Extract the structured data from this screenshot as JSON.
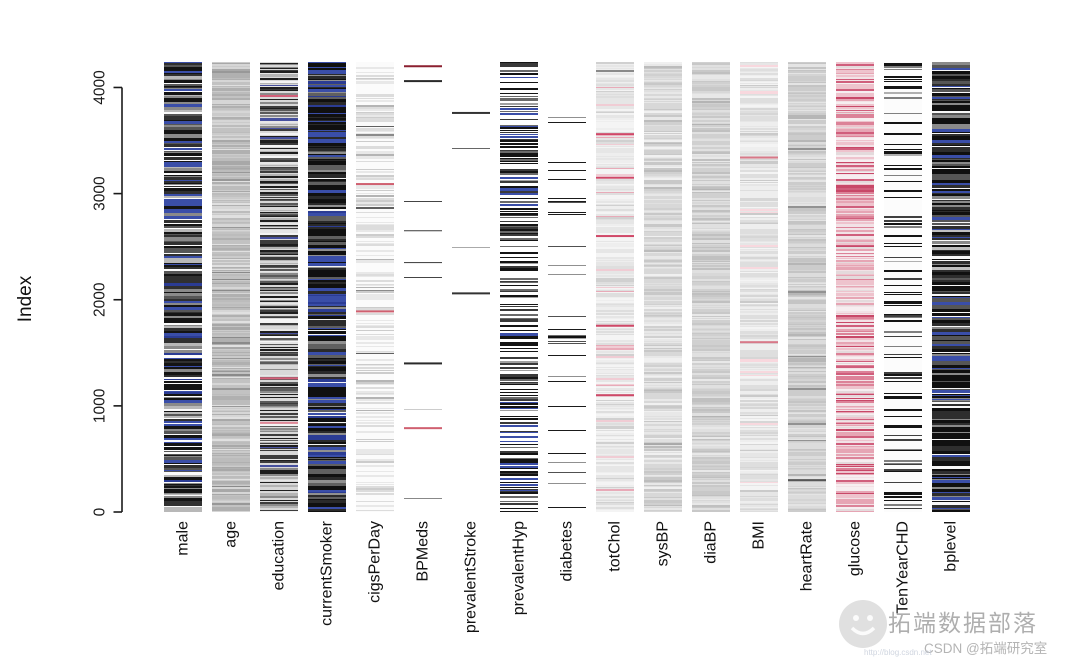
{
  "chart_data": {
    "type": "heatmap",
    "title": "",
    "ylabel": "Index",
    "y_ticks": [
      "0",
      "1000",
      "2000",
      "3000",
      "4000"
    ],
    "y_tick_values": [
      0,
      1000,
      2000,
      3000,
      4000
    ],
    "y_max": 4240,
    "n_rows": 4240,
    "seed": 1337,
    "accent_colors": {
      "blue": "#3a4ea8",
      "red": "#d04868",
      "black": "#141414"
    },
    "x_categories": [
      "male",
      "age",
      "education",
      "currentSmoker",
      "cigsPerDay",
      "BPMeds",
      "prevalentStroke",
      "prevalentHyp",
      "diabetes",
      "totChol",
      "sysBP",
      "diaBP",
      "BMI",
      "heartRate",
      "glucose",
      "TenYearCHD",
      "bplevel"
    ],
    "columns": [
      {
        "name": "male",
        "bg": "#fbfbfb",
        "density": 0.8,
        "run": 3,
        "palette": [
          [
            "#141414",
            3
          ],
          [
            "#303030",
            1.5
          ],
          [
            "#565656",
            1.5
          ],
          [
            "#8a8a8a",
            1.5
          ],
          [
            "#b8b8b8",
            1
          ],
          [
            "#3a4ea8",
            1.6
          ],
          [
            "#2b3c94",
            0.6
          ]
        ],
        "marks": []
      },
      {
        "name": "age",
        "bg": "#cbcbcb",
        "density": 0.85,
        "run": 2,
        "palette": [
          [
            "#c2c2c2",
            2
          ],
          [
            "#bcbcbc",
            2
          ],
          [
            "#b0b0b0",
            1.5
          ],
          [
            "#a8a8a8",
            1
          ],
          [
            "#d6d6d6",
            1.5
          ],
          [
            "#e0e0e0",
            0.7
          ],
          [
            "#989898",
            0.4
          ],
          [
            "#8a8a8a",
            0.2
          ]
        ],
        "marks": []
      },
      {
        "name": "education",
        "bg": "#d8d8d8",
        "density": 0.65,
        "run": 2,
        "palette": [
          [
            "#1e1e1e",
            1.8
          ],
          [
            "#3c3c3c",
            1.5
          ],
          [
            "#5a5a5a",
            1.2
          ],
          [
            "#8a8a8a",
            1.2
          ],
          [
            "#b4b4b4",
            1
          ],
          [
            "#e6e6e6",
            0.8
          ],
          [
            "#f4f4f4",
            0.5
          ],
          [
            "#46509e",
            0.25
          ]
        ],
        "marks": [
          [
            3920,
            "#d5607a",
            2
          ],
          [
            1260,
            "#d5607a",
            2
          ],
          [
            840,
            "#e08898",
            2
          ]
        ]
      },
      {
        "name": "currentSmoker",
        "bg": "#f4f4f4",
        "density": 0.92,
        "run": 3,
        "palette": [
          [
            "#101010",
            4
          ],
          [
            "#2a2a2a",
            2
          ],
          [
            "#3a4ea8",
            2
          ],
          [
            "#2b3c94",
            1
          ],
          [
            "#606060",
            1.2
          ],
          [
            "#909090",
            0.6
          ]
        ],
        "marks": []
      },
      {
        "name": "cigsPerDay",
        "bg": "#fbfbfb",
        "density": 0.4,
        "run": 2,
        "palette": [
          [
            "#e8e8e8",
            2.5
          ],
          [
            "#dcdcdc",
            2
          ],
          [
            "#cccccc",
            1.2
          ],
          [
            "#b4b4b4",
            0.5
          ],
          [
            "#8a8a8a",
            0.2
          ],
          [
            "#606060",
            0.08
          ]
        ],
        "marks": [
          [
            3090,
            "#d06070",
            2
          ],
          [
            1890,
            "#d06070",
            2
          ]
        ]
      },
      {
        "name": "BPMeds",
        "bg": "#ffffff",
        "density": 0.012,
        "run": 1,
        "palette": [
          [
            "#444444",
            1
          ],
          [
            "#888888",
            1
          ],
          [
            "#cccccc",
            1
          ]
        ],
        "marks": [
          [
            4200,
            "#8b2030",
            2
          ],
          [
            4060,
            "#2a2a2a",
            2
          ],
          [
            2650,
            "#3a3a3a",
            1
          ],
          [
            2350,
            "#3a3a3a",
            1
          ],
          [
            1400,
            "#2a2a2a",
            2
          ],
          [
            790,
            "#d06070",
            2
          ]
        ]
      },
      {
        "name": "prevalentStroke",
        "bg": "#ffffff",
        "density": 0.006,
        "run": 1,
        "palette": [
          [
            "#666666",
            1
          ],
          [
            "#aaaaaa",
            1
          ]
        ],
        "marks": [
          [
            3760,
            "#333333",
            2
          ],
          [
            2060,
            "#333333",
            2
          ]
        ]
      },
      {
        "name": "prevalentHyp",
        "bg": "#ffffff",
        "density": 0.42,
        "run": 2,
        "palette": [
          [
            "#141414",
            2.5
          ],
          [
            "#3a3a3a",
            1.2
          ],
          [
            "#3a4ea8",
            1.3
          ],
          [
            "#6a6a6a",
            0.8
          ],
          [
            "#a0a0a0",
            0.6
          ]
        ],
        "marks": []
      },
      {
        "name": "diabetes",
        "bg": "#ffffff",
        "density": 0.05,
        "run": 1,
        "palette": [
          [
            "#1a1a1a",
            2
          ],
          [
            "#505050",
            1
          ],
          [
            "#909090",
            0.8
          ]
        ],
        "marks": [
          [
            1650,
            "#111111",
            3
          ]
        ]
      },
      {
        "name": "totChol",
        "bg": "#eeeeee",
        "density": 0.7,
        "run": 2,
        "palette": [
          [
            "#e6e6e6",
            2
          ],
          [
            "#dedede",
            1.2
          ],
          [
            "#f4f4f4",
            1.5
          ],
          [
            "#d0d0d0",
            0.5
          ],
          [
            "#f0ccd4",
            0.5
          ],
          [
            "#e8aab8",
            0.25
          ],
          [
            "#8a8a8a",
            0.08
          ]
        ],
        "marks": [
          [
            3560,
            "#d04868",
            2
          ],
          [
            3150,
            "#d04868",
            2
          ],
          [
            2600,
            "#d04868",
            2
          ],
          [
            1755,
            "#d04868",
            2
          ],
          [
            1100,
            "#d04868",
            2
          ]
        ]
      },
      {
        "name": "sysBP",
        "bg": "#e0e0e0",
        "density": 0.8,
        "run": 2,
        "palette": [
          [
            "#d8d8d8",
            2
          ],
          [
            "#d0d0d0",
            1.5
          ],
          [
            "#c8c8c8",
            1
          ],
          [
            "#e8e8e8",
            1.5
          ],
          [
            "#f0f0f0",
            0.7
          ],
          [
            "#bcbcbc",
            0.3
          ]
        ],
        "marks": [
          [
            640,
            "#a8a8a8",
            2
          ]
        ]
      },
      {
        "name": "diaBP",
        "bg": "#d8d8d8",
        "density": 0.8,
        "run": 2,
        "palette": [
          [
            "#d0d0d0",
            2
          ],
          [
            "#c8c8c8",
            1.5
          ],
          [
            "#c0c0c0",
            0.8
          ],
          [
            "#e0e0e0",
            1.5
          ],
          [
            "#e8e8e8",
            0.6
          ],
          [
            "#b4b4b4",
            0.2
          ]
        ],
        "marks": []
      },
      {
        "name": "BMI",
        "bg": "#e6e6e6",
        "density": 0.75,
        "run": 2,
        "palette": [
          [
            "#dedede",
            2
          ],
          [
            "#d6d6d6",
            1.2
          ],
          [
            "#eeeeee",
            1.5
          ],
          [
            "#f4f4f4",
            0.8
          ],
          [
            "#cacaca",
            0.4
          ],
          [
            "#f8d8de",
            0.2
          ]
        ],
        "marks": [
          [
            3340,
            "#d87888",
            2
          ],
          [
            1600,
            "#d87888",
            2
          ]
        ]
      },
      {
        "name": "heartRate",
        "bg": "#d4d4d4",
        "density": 0.8,
        "run": 2,
        "palette": [
          [
            "#cccccc",
            2
          ],
          [
            "#c4c4c4",
            1.2
          ],
          [
            "#dcdcdc",
            1.5
          ],
          [
            "#e4e4e4",
            0.8
          ],
          [
            "#b6b6b6",
            0.3
          ],
          [
            "#929292",
            0.1
          ]
        ],
        "marks": [
          [
            300,
            "#565656",
            2
          ]
        ]
      },
      {
        "name": "glucose",
        "bg": "#f2e2e6",
        "density": 0.75,
        "run": 2,
        "palette": [
          [
            "#eec3cd",
            2.5
          ],
          [
            "#e6a5b4",
            2
          ],
          [
            "#dc8298",
            1.5
          ],
          [
            "#d05e7c",
            1.2
          ],
          [
            "#c84868",
            0.8
          ],
          [
            "#f6eef0",
            1.5
          ],
          [
            "#e4dadc",
            0.8
          ],
          [
            "#9a9a9a",
            0.08
          ]
        ],
        "marks": []
      },
      {
        "name": "TenYearCHD",
        "bg": "#fcfcfc",
        "density": 0.16,
        "run": 2,
        "palette": [
          [
            "#141414",
            2.5
          ],
          [
            "#404040",
            1
          ],
          [
            "#808080",
            0.6
          ],
          [
            "#b0b0b0",
            0.4
          ]
        ],
        "marks": []
      },
      {
        "name": "bplevel",
        "bg": "#f8f8f8",
        "density": 0.88,
        "run": 3,
        "palette": [
          [
            "#101010",
            4
          ],
          [
            "#2e2e2e",
            2
          ],
          [
            "#3a4ea8",
            1.8
          ],
          [
            "#565656",
            1.5
          ],
          [
            "#8a8a8a",
            1
          ],
          [
            "#c0c0c0",
            0.5
          ]
        ],
        "marks": []
      }
    ]
  },
  "watermark": {
    "title": "拓端数据部落",
    "subtitle": "CSDN @拓端研究室",
    "url": "http://blog.csdn.net"
  }
}
